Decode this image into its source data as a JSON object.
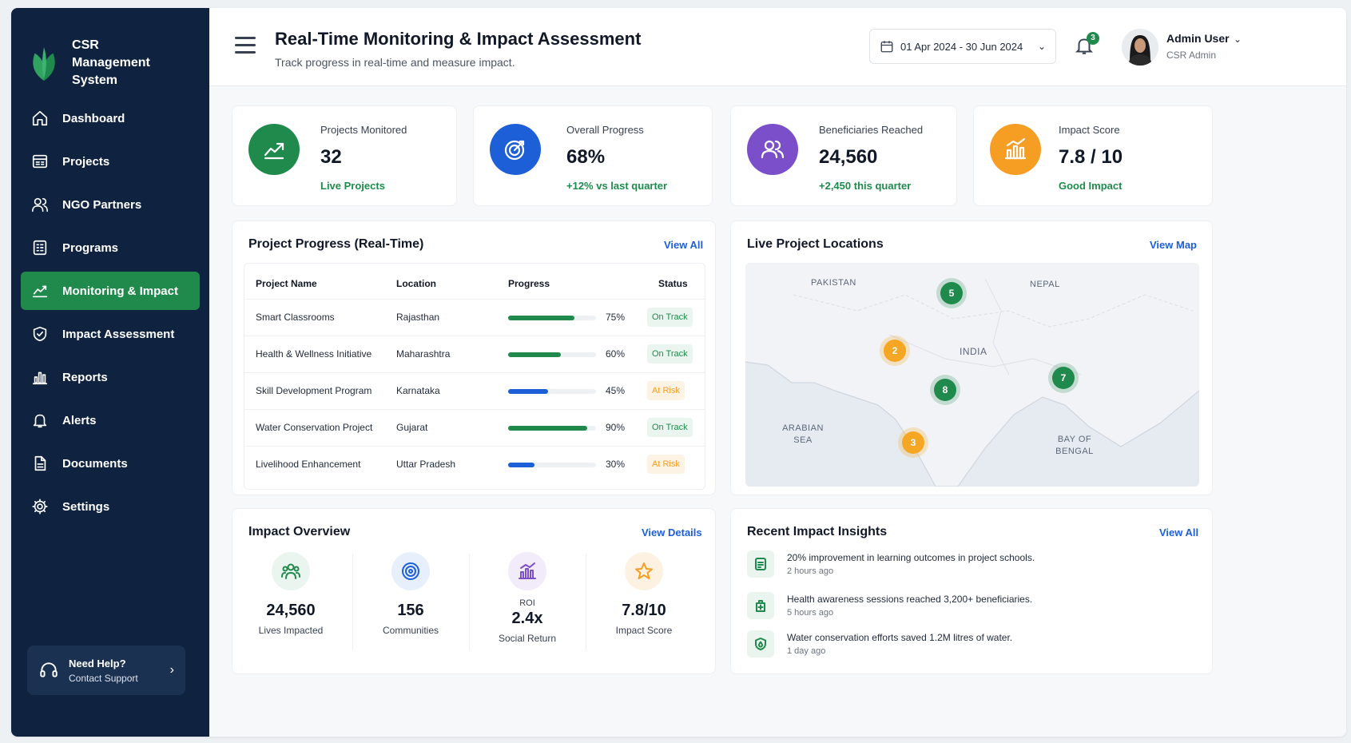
{
  "brand": {
    "line1": "CSR",
    "line2": "Management System"
  },
  "sidebar": {
    "items": [
      {
        "label": "Dashboard",
        "icon": "home-icon"
      },
      {
        "label": "Projects",
        "icon": "projects-icon"
      },
      {
        "label": "NGO Partners",
        "icon": "users-icon"
      },
      {
        "label": "Programs",
        "icon": "programs-icon"
      },
      {
        "label": "Monitoring & Impact",
        "icon": "monitoring-icon",
        "active": true
      },
      {
        "label": "Impact Assessment",
        "icon": "shield-check-icon"
      },
      {
        "label": "Reports",
        "icon": "bar-chart-icon"
      },
      {
        "label": "Alerts",
        "icon": "bell-icon"
      },
      {
        "label": "Documents",
        "icon": "document-icon"
      },
      {
        "label": "Settings",
        "icon": "gear-icon"
      }
    ],
    "help": {
      "title": "Need Help?",
      "subtitle": "Contact Support"
    }
  },
  "header": {
    "title": "Real-Time Monitoring & Impact Assessment",
    "subtitle": "Track progress in real-time and measure impact.",
    "date_range": "01 Apr 2024 - 30 Jun 2024",
    "notifications": "3",
    "user_name": "Admin User",
    "user_role": "CSR Admin"
  },
  "kpis": [
    {
      "label": "Projects Monitored",
      "value": "32",
      "sub": "Live Projects",
      "color": "#1f8a4c"
    },
    {
      "label": "Overall Progress",
      "value": "68%",
      "sub": "+12% vs last quarter",
      "color": "#1d5fd6"
    },
    {
      "label": "Beneficiaries Reached",
      "value": "24,560",
      "sub": "+2,450 this quarter",
      "color": "#7b4fc9"
    },
    {
      "label": "Impact Score",
      "value": "7.8 / 10",
      "sub": "Good Impact",
      "color": "#f59e23"
    }
  ],
  "progress": {
    "title": "Project Progress (Real-Time)",
    "link": "View All",
    "columns": [
      "Project Name",
      "Location",
      "Progress",
      "Status"
    ],
    "rows": [
      {
        "name": "Smart Classrooms",
        "location": "Rajasthan",
        "pct": "75%",
        "progress": 0.75,
        "status": "On Track"
      },
      {
        "name": "Health & Wellness Initiative",
        "location": "Maharashtra",
        "pct": "60%",
        "progress": 0.6,
        "status": "On Track"
      },
      {
        "name": "Skill Development Program",
        "location": "Karnataka",
        "pct": "45%",
        "progress": 0.45,
        "status": "At Risk"
      },
      {
        "name": "Water Conservation Project",
        "location": "Gujarat",
        "pct": "90%",
        "progress": 0.9,
        "status": "On Track"
      },
      {
        "name": "Livelihood Enhancement",
        "location": "Uttar Pradesh",
        "pct": "30%",
        "progress": 0.3,
        "status": "At Risk"
      }
    ]
  },
  "map": {
    "title": "Live Project Locations",
    "link": "View Map",
    "labels": {
      "pakistan": "PAKISTAN",
      "nepal": "NEPAL",
      "india": "INDIA",
      "arabian_sea": "ARABIAN SEA",
      "bay_of_bengal": "BAY OF BENGAL"
    },
    "markers": [
      "5",
      "2",
      "8",
      "7",
      "3"
    ]
  },
  "impact": {
    "title": "Impact Overview",
    "link": "View Details",
    "items": [
      {
        "pre": "",
        "value": "24,560",
        "label": "Lives Impacted"
      },
      {
        "pre": "",
        "value": "156",
        "label": "Communities"
      },
      {
        "pre": "ROI",
        "value": "2.4x",
        "label": "Social Return"
      },
      {
        "pre": "",
        "value": "7.8/10",
        "label": "Impact Score"
      }
    ]
  },
  "insights": {
    "title": "Recent Impact Insights",
    "link": "View All",
    "items": [
      {
        "text": "20% improvement in learning outcomes in project schools.",
        "time": "2 hours ago"
      },
      {
        "text": "Health awareness sessions reached 3,200+ beneficiaries.",
        "time": "5 hours ago"
      },
      {
        "text": "Water conservation efforts saved 1.2M litres of water.",
        "time": "1 day ago"
      }
    ]
  },
  "colors": {
    "on_track": "#1f8a4c",
    "at_risk": "#f59e23",
    "bar_green": "#1f8a4c",
    "bar_blue": "#1d5fd6"
  }
}
